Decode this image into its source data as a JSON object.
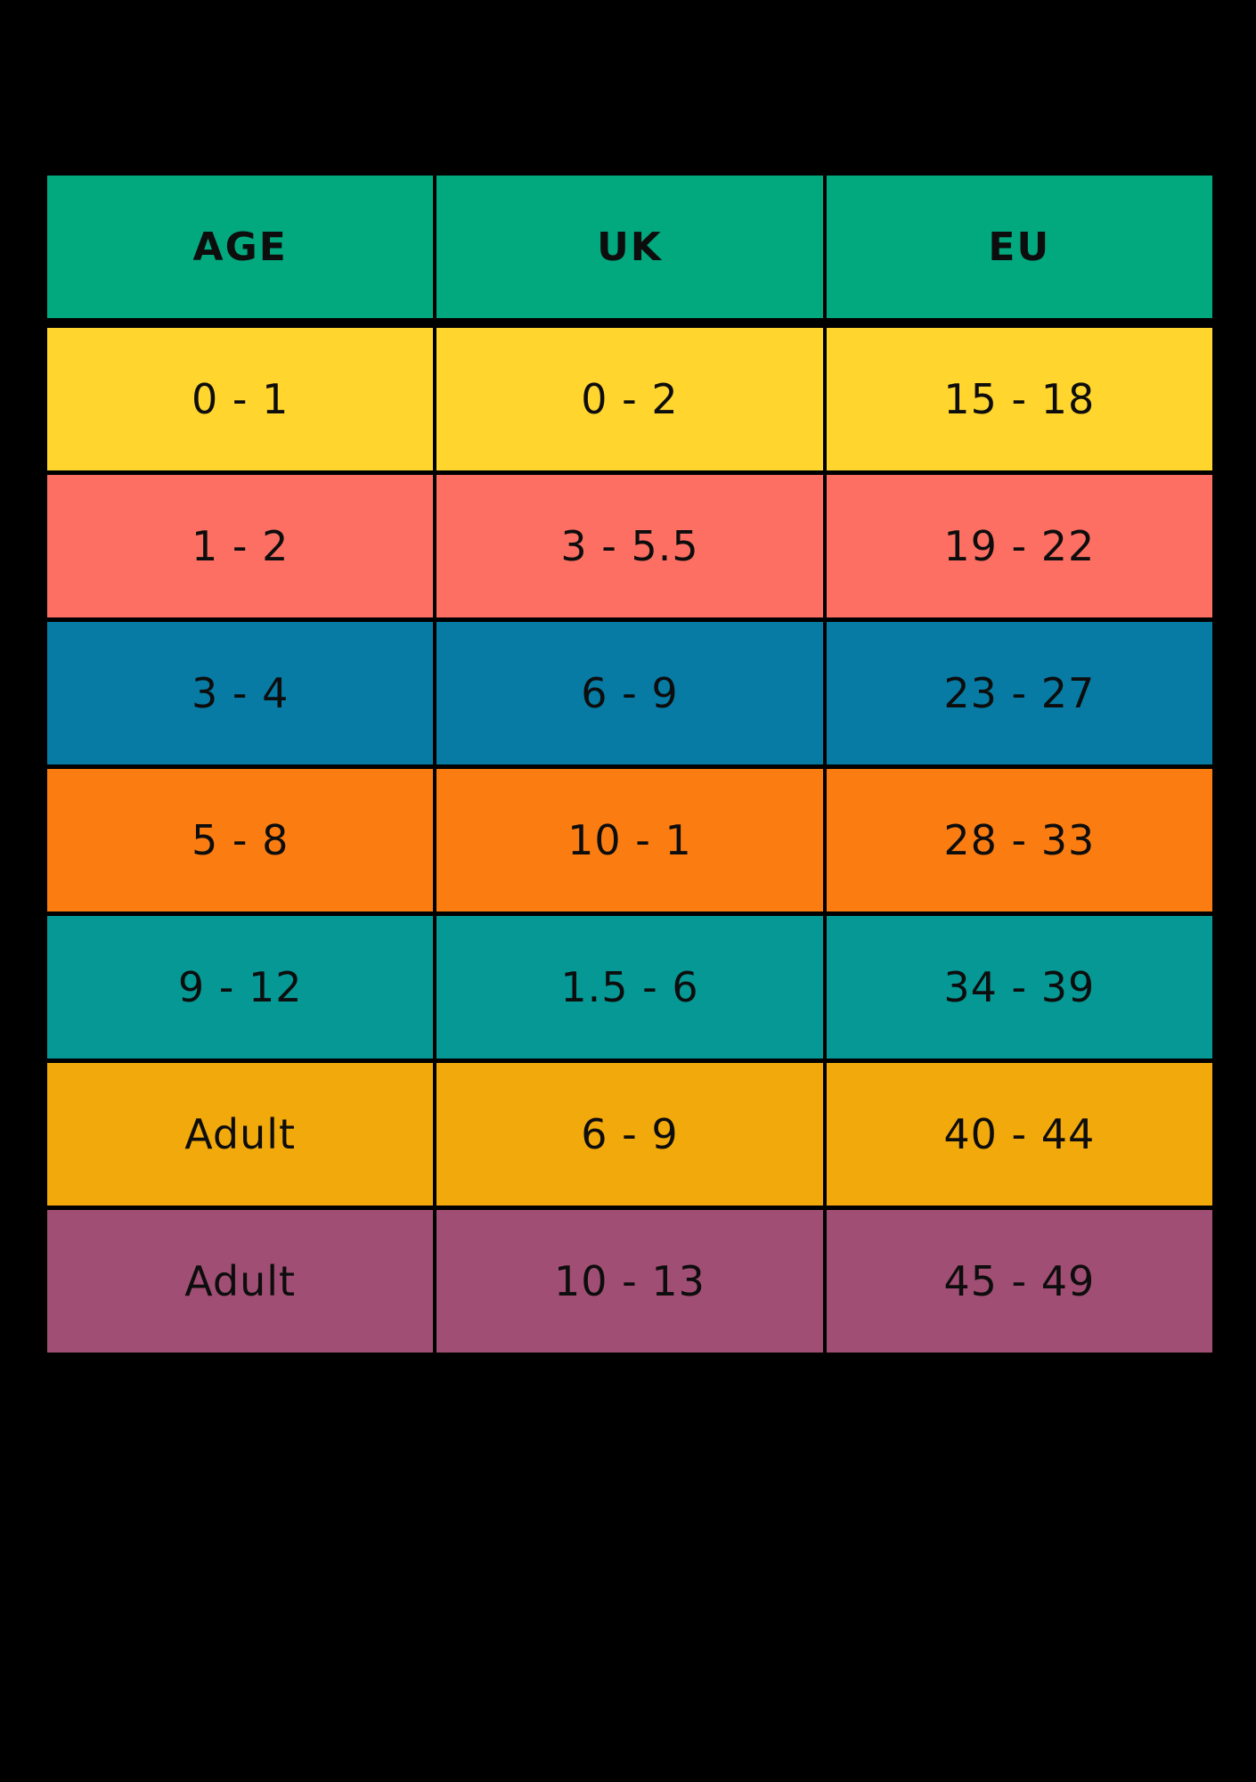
{
  "chart_data": {
    "type": "table",
    "title": "",
    "columns": [
      "AGE",
      "UK",
      "EU"
    ],
    "rows": [
      [
        "0 - 1",
        "0 - 2",
        "15 - 18"
      ],
      [
        "1 - 2",
        "3 - 5.5",
        "19 - 22"
      ],
      [
        "3 - 4",
        "6 - 9",
        "23 - 27"
      ],
      [
        "5 - 8",
        "10 - 1",
        "28 - 33"
      ],
      [
        "9 - 12",
        "1.5 - 6",
        "34 - 39"
      ],
      [
        "Adult",
        "6 - 9",
        "40 - 44"
      ],
      [
        "Adult",
        "10 - 13",
        "45 - 49"
      ]
    ],
    "header_color": "#02A97F",
    "row_colors": [
      "#FFD52E",
      "#FC6F62",
      "#077BA4",
      "#FB7D12",
      "#069895",
      "#F2A90B",
      "#A04E73"
    ],
    "background_color": "#000000",
    "text_color": "#0d0d0d",
    "grid": true,
    "legend_position": "none"
  }
}
